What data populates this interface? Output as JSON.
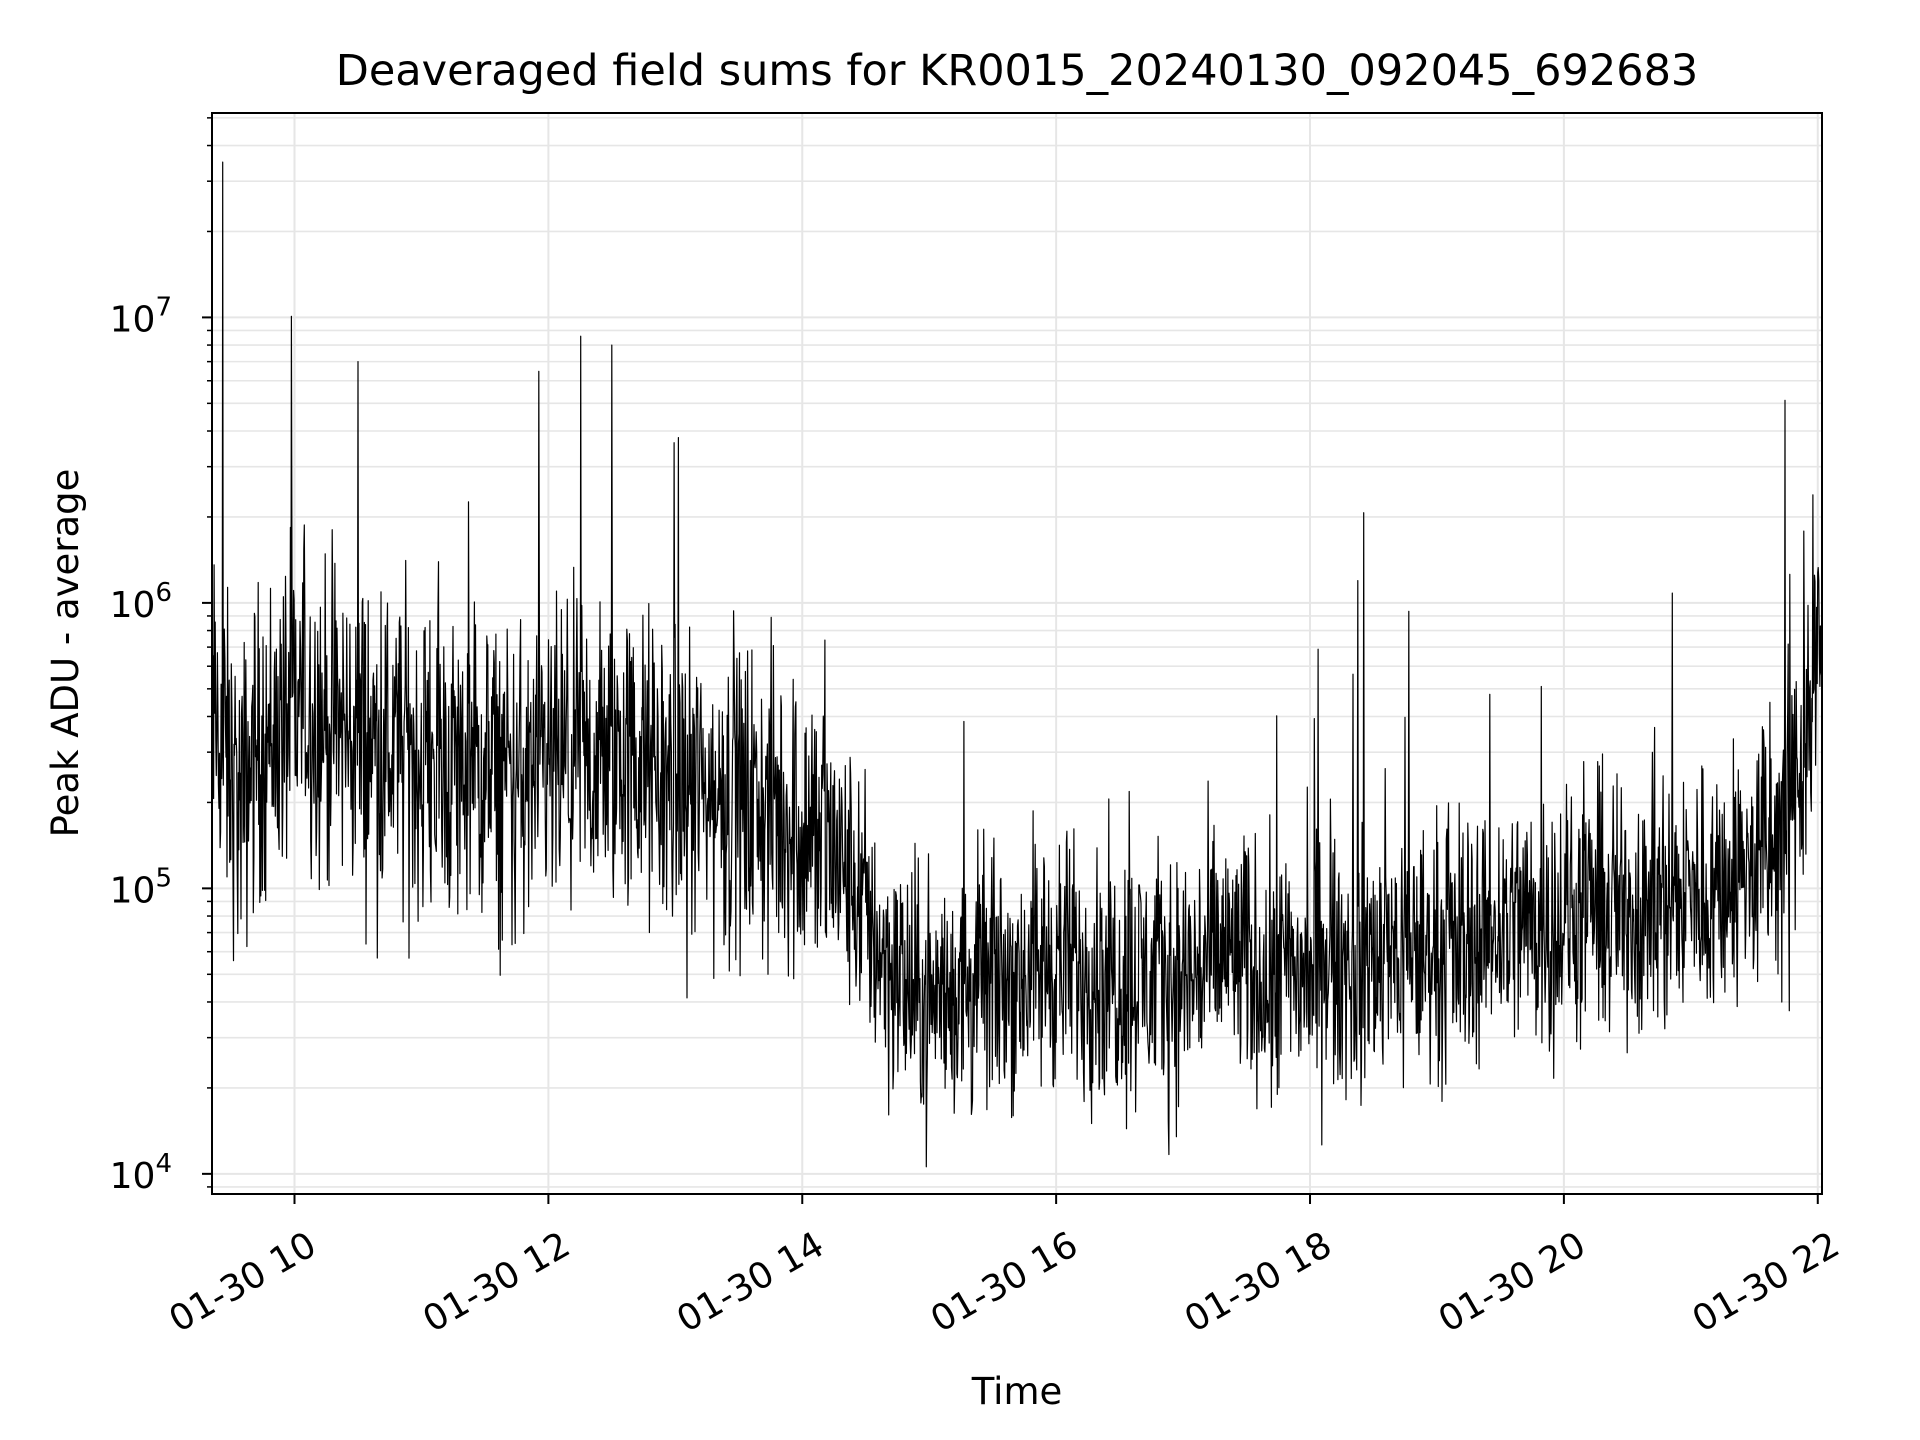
{
  "chart_data": {
    "type": "line",
    "title": "Deaveraged field sums for KR0015_20240130_092045_692683",
    "xlabel": "Time",
    "ylabel": "Peak ADU - average",
    "y_scale": "log",
    "grid": true,
    "line_color": "#000000",
    "grid_color": "#e6e6e6",
    "xlim": [
      "2024-01-30 09:21",
      "2024-01-30 22:02"
    ],
    "ylim": [
      8500,
      52000000
    ],
    "x_ticks": [
      {
        "value": "2024-01-30 10:00",
        "label": "01-30 10"
      },
      {
        "value": "2024-01-30 12:00",
        "label": "01-30 12"
      },
      {
        "value": "2024-01-30 14:00",
        "label": "01-30 14"
      },
      {
        "value": "2024-01-30 16:00",
        "label": "01-30 16"
      },
      {
        "value": "2024-01-30 18:00",
        "label": "01-30 18"
      },
      {
        "value": "2024-01-30 20:00",
        "label": "01-30 20"
      },
      {
        "value": "2024-01-30 22:00",
        "label": "01-30 22"
      }
    ],
    "y_ticks": [
      {
        "value": 10000,
        "base": "10",
        "exp": "4"
      },
      {
        "value": 100000,
        "base": "10",
        "exp": "5"
      },
      {
        "value": 1000000,
        "base": "10",
        "exp": "6"
      },
      {
        "value": 10000000,
        "base": "10",
        "exp": "7"
      }
    ],
    "series": [
      {
        "x": [
          "2024-01-30 09:21",
          "2024-01-30 09:26",
          "2024-01-30 09:30",
          "2024-01-30 09:35",
          "2024-01-30 09:40",
          "2024-01-30 09:50",
          "2024-01-30 10:05",
          "2024-01-30 10:15",
          "2024-01-30 10:30",
          "2024-01-30 10:50",
          "2024-01-30 11:10",
          "2024-01-30 11:30",
          "2024-01-30 11:50",
          "2024-01-30 12:10",
          "2024-01-30 12:30",
          "2024-01-30 12:33",
          "2024-01-30 12:50",
          "2024-01-30 13:10",
          "2024-01-30 13:30",
          "2024-01-30 13:50",
          "2024-01-30 14:10",
          "2024-01-30 14:25",
          "2024-01-30 14:40",
          "2024-01-30 14:55",
          "2024-01-30 15:20",
          "2024-01-30 15:40",
          "2024-01-30 16:00",
          "2024-01-30 16:30",
          "2024-01-30 17:00",
          "2024-01-30 17:20",
          "2024-01-30 17:40",
          "2024-01-30 18:00",
          "2024-01-30 18:20",
          "2024-01-30 18:40",
          "2024-01-30 19:00",
          "2024-01-30 19:20",
          "2024-01-30 19:40",
          "2024-01-30 19:50",
          "2024-01-30 20:10",
          "2024-01-30 20:30",
          "2024-01-30 20:50",
          "2024-01-30 21:10",
          "2024-01-30 21:30",
          "2024-01-30 21:45",
          "2024-01-30 21:55",
          "2024-01-30 22:02"
        ],
        "y": [
          400000,
          35000000,
          250000,
          180000,
          300000,
          350000,
          450000,
          380000,
          7000000,
          300000,
          280000,
          250000,
          230000,
          270000,
          8000000,
          300000,
          250000,
          220000,
          200000,
          180000,
          150000,
          100000,
          55000,
          40000,
          45000,
          50000,
          55000,
          50000,
          48000,
          60000,
          50000,
          50000,
          55000,
          60000,
          60000,
          70000,
          80000,
          75000,
          80000,
          85000,
          90000,
          100000,
          120000,
          150000,
          400000,
          600000
        ]
      }
    ]
  }
}
